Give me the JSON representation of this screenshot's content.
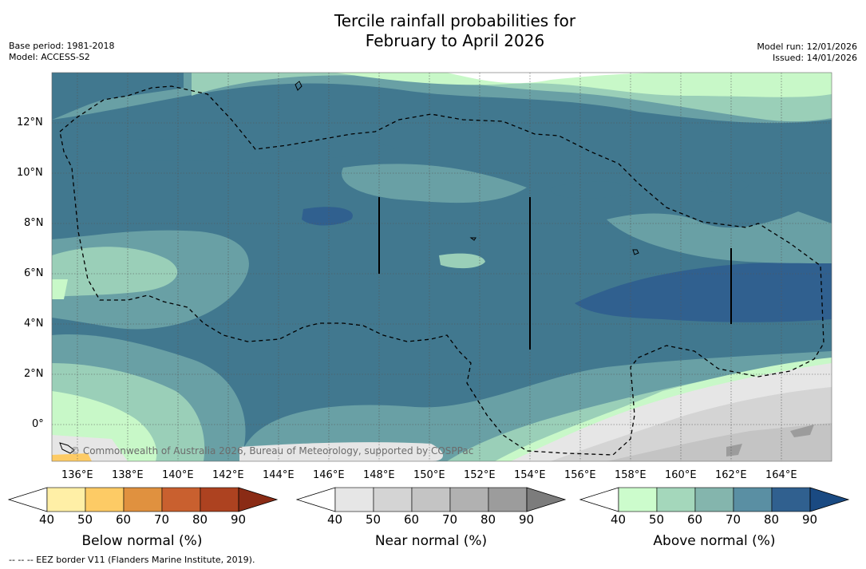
{
  "title": {
    "line1": "Tercile rainfall probabilities for",
    "line2": "February to April 2026"
  },
  "meta": {
    "base_period": "Base period: 1981-2018",
    "model": "Model: ACCESS-S2",
    "model_run": "Model run: 12/01/2026",
    "issued": "Issued: 14/01/2026"
  },
  "map": {
    "longitude_labels": [
      "136°E",
      "138°E",
      "140°E",
      "142°E",
      "144°E",
      "146°E",
      "148°E",
      "150°E",
      "152°E",
      "154°E",
      "156°E",
      "158°E",
      "160°E",
      "162°E",
      "164°E"
    ],
    "latitude_labels": [
      "12°N",
      "10°N",
      "8°N",
      "6°N",
      "4°N",
      "2°N",
      "0°"
    ],
    "copyright": "© Commonwealth of Australia 2026, Bureau of Meteorology, supported by COSPPac"
  },
  "colorbars": [
    {
      "name": "below",
      "label": "Below normal (%)",
      "ticks": [
        "40",
        "50",
        "60",
        "70",
        "80",
        "90"
      ],
      "colors": [
        "#ffffff",
        "#ffefa6",
        "#fdcb65",
        "#e0913f",
        "#c9602f",
        "#ad4220",
        "#8a2b15"
      ]
    },
    {
      "name": "near",
      "label": "Near normal (%)",
      "ticks": [
        "40",
        "50",
        "60",
        "70",
        "80",
        "90"
      ],
      "colors": [
        "#ffffff",
        "#e6e6e6",
        "#d4d4d4",
        "#c4c4c4",
        "#b1b1b1",
        "#9c9c9c",
        "#7c7c7c"
      ]
    },
    {
      "name": "above",
      "label": "Above normal (%)",
      "ticks": [
        "40",
        "50",
        "60",
        "70",
        "80",
        "90"
      ],
      "colors": [
        "#ffffff",
        "#ccfccc",
        "#a4d7bb",
        "#84b5ad",
        "#5a8fa3",
        "#30608f",
        "#1a4a82"
      ]
    }
  ],
  "footer": "--  --  -- EEZ border V11 (Flanders Marine Institute, 2019)."
}
